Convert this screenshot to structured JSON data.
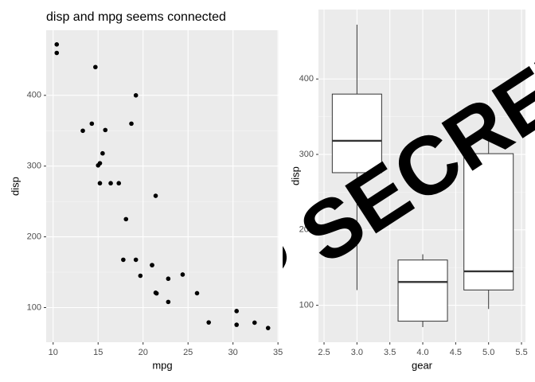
{
  "chart_data": [
    {
      "type": "scatter",
      "title": "disp and mpg seems connected",
      "x_label": "mpg",
      "y_label": "disp",
      "x": [
        21,
        21,
        22.8,
        21.4,
        18.7,
        18.1,
        14.3,
        24.4,
        22.8,
        19.2,
        17.8,
        16.4,
        17.3,
        15.2,
        10.4,
        10.4,
        14.7,
        32.4,
        30.4,
        33.9,
        21.5,
        15.5,
        15.2,
        13.3,
        19.2,
        27.3,
        26,
        30.4,
        15.8,
        19.7,
        15,
        21.4
      ],
      "values": [
        160,
        160,
        108,
        258,
        360,
        225,
        360,
        146.7,
        140.8,
        167.6,
        167.6,
        275.8,
        275.8,
        275.8,
        472,
        460,
        440,
        78.7,
        75.7,
        71.1,
        120.1,
        318,
        304,
        350,
        400,
        79,
        120.3,
        95.1,
        351,
        145,
        301,
        121
      ],
      "color": "#000000",
      "xlim": [
        9.225,
        35.075
      ],
      "xticks": [
        10,
        15,
        20,
        25,
        30,
        35
      ],
      "ylim": [
        51.05,
        492.05
      ],
      "yticks": [
        100,
        200,
        300,
        400
      ],
      "grid": true
    },
    {
      "type": "boxplot",
      "x_label": "gear",
      "y_label": "disp",
      "x": [
        3,
        4,
        5
      ],
      "whisker_low": [
        120.1,
        71.1,
        95.1
      ],
      "q1": [
        275.8,
        78.925,
        120.3
      ],
      "median": [
        318,
        130.9,
        145
      ],
      "q3": [
        380,
        160,
        301
      ],
      "whisker_high": [
        472,
        167.6,
        351
      ],
      "color": "#ffffff",
      "xlim": [
        2.415,
        5.56
      ],
      "xticks": [
        2.5,
        {
          "value": 3,
          "label": "3.0"
        },
        3.5,
        {
          "value": 4,
          "label": "4.0"
        },
        4.5,
        {
          "value": 5,
          "label": "5.0"
        },
        5.5
      ],
      "ylim": [
        51.05,
        492.05
      ],
      "yticks": [
        100,
        200,
        300,
        400
      ],
      "grid": true,
      "annotation": "TOP SECRET"
    }
  ]
}
